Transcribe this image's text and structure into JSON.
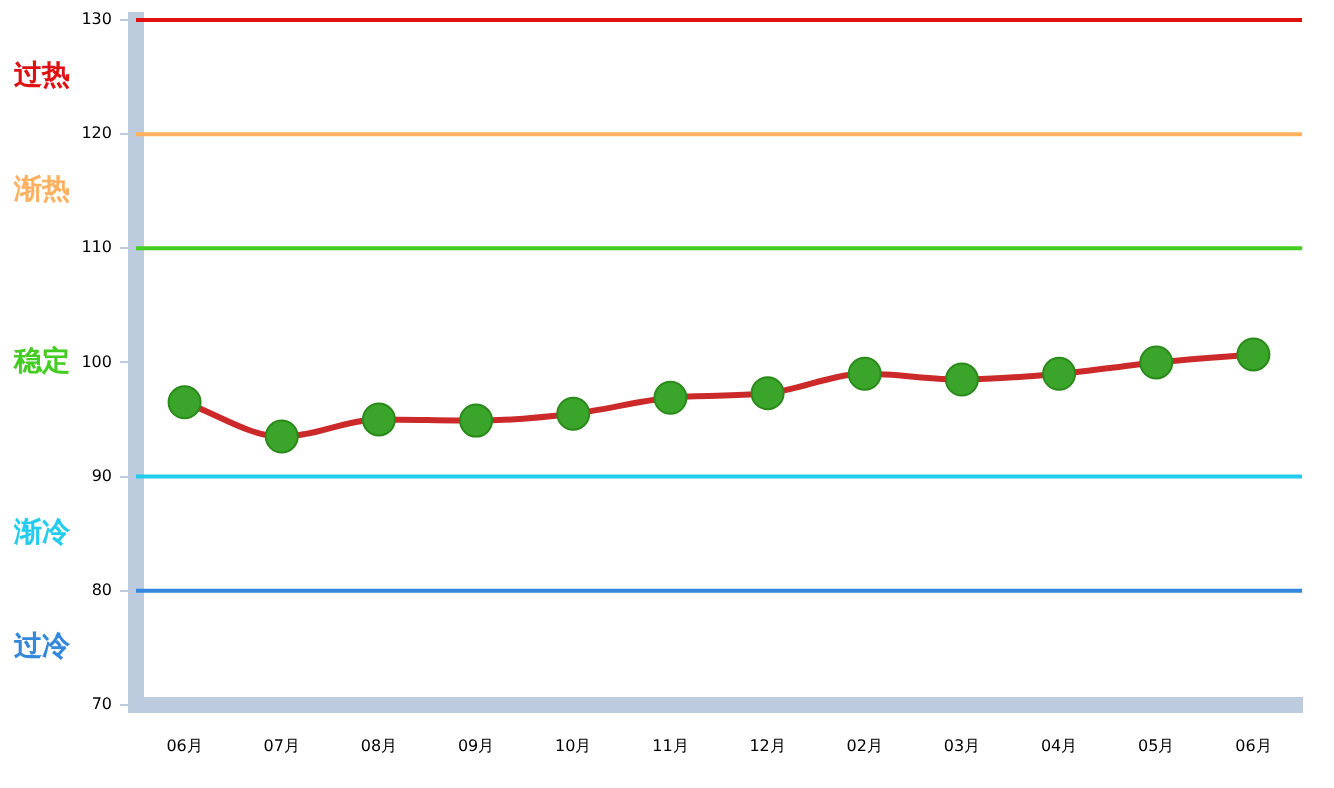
{
  "chart_data": {
    "type": "line",
    "categories": [
      "06月",
      "07月",
      "08月",
      "09月",
      "10月",
      "11月",
      "12月",
      "02月",
      "03月",
      "04月",
      "05月",
      "06月"
    ],
    "series": [
      {
        "color": "#cc2a2a",
        "values": [
          96.5,
          93.5,
          95.0,
          94.9,
          95.5,
          96.9,
          97.3,
          99.0,
          98.5,
          99.0,
          100.0,
          100.7
        ]
      }
    ],
    "ylim": [
      70,
      130
    ],
    "yticks": [
      70,
      80,
      90,
      100,
      110,
      120,
      130
    ],
    "grid": false,
    "legend": false,
    "marker": "circle",
    "line_style": "solid",
    "ref_lines": [
      {
        "axis": "y",
        "value": 130,
        "color": "#e01010"
      },
      {
        "axis": "y",
        "value": 120,
        "color": "#ffb060"
      },
      {
        "axis": "y",
        "value": 110,
        "color": "#44cc22"
      },
      {
        "axis": "y",
        "value": 90,
        "color": "#22ccee"
      },
      {
        "axis": "y",
        "value": 80,
        "color": "#3388dd"
      }
    ],
    "annotations": [
      "过热",
      "渐热",
      "稳定",
      "渐冷",
      "过冷"
    ]
  }
}
